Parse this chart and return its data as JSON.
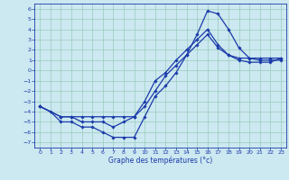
{
  "xlabel": "Graphe des températures (°c)",
  "xlim": [
    -0.5,
    23.5
  ],
  "ylim": [
    -7.5,
    6.5
  ],
  "xticks": [
    0,
    1,
    2,
    3,
    4,
    5,
    6,
    7,
    8,
    9,
    10,
    11,
    12,
    13,
    14,
    15,
    16,
    17,
    18,
    19,
    20,
    21,
    22,
    23
  ],
  "yticks": [
    6,
    5,
    4,
    3,
    2,
    1,
    0,
    -1,
    -2,
    -3,
    -4,
    -5,
    -6,
    -7
  ],
  "background_color": "#cce8f0",
  "grid_color": "#99ccbb",
  "line_color": "#1a3aaa",
  "line1_x": [
    0,
    1,
    2,
    3,
    4,
    5,
    6,
    7,
    8,
    9,
    10,
    11,
    12,
    13,
    14,
    15,
    16,
    17,
    18,
    19,
    20,
    21,
    22,
    23
  ],
  "line1_y": [
    -3.5,
    -4,
    -5,
    -5,
    -5.5,
    -5.5,
    -6,
    -6.5,
    -6.5,
    -6.5,
    -4.5,
    -2.5,
    -1.5,
    -0.2,
    1.5,
    3.5,
    5.8,
    5.5,
    4,
    2.2,
    1.2,
    1,
    1,
    1
  ],
  "line2_x": [
    0,
    2,
    3,
    4,
    5,
    6,
    7,
    8,
    9,
    10,
    11,
    12,
    13,
    14,
    15,
    16,
    17,
    18,
    19,
    20,
    21,
    22,
    23
  ],
  "line2_y": [
    -3.5,
    -4.5,
    -4.5,
    -4.5,
    -4.5,
    -4.5,
    -4.5,
    -4.5,
    -4.5,
    -3.5,
    -2,
    -0.5,
    0.5,
    1.5,
    2.5,
    3.5,
    2.2,
    1.5,
    1,
    0.8,
    0.8,
    0.8,
    1.2
  ],
  "line3_x": [
    0,
    2,
    3,
    4,
    5,
    6,
    7,
    8,
    9,
    10,
    11,
    12,
    13,
    14,
    15,
    16,
    17,
    18,
    19,
    20,
    21,
    22,
    23
  ],
  "line3_y": [
    -3.5,
    -4.5,
    -4.5,
    -5,
    -5,
    -5,
    -5.5,
    -5,
    -4.5,
    -3,
    -1,
    -0.2,
    1,
    2,
    3,
    4,
    2.5,
    1.5,
    1.2,
    1.2,
    1.2,
    1.2,
    1.2
  ],
  "marker": "D",
  "markersize": 1.8,
  "linewidth": 0.9,
  "tick_fontsize": 4.5,
  "xlabel_fontsize": 5.5
}
